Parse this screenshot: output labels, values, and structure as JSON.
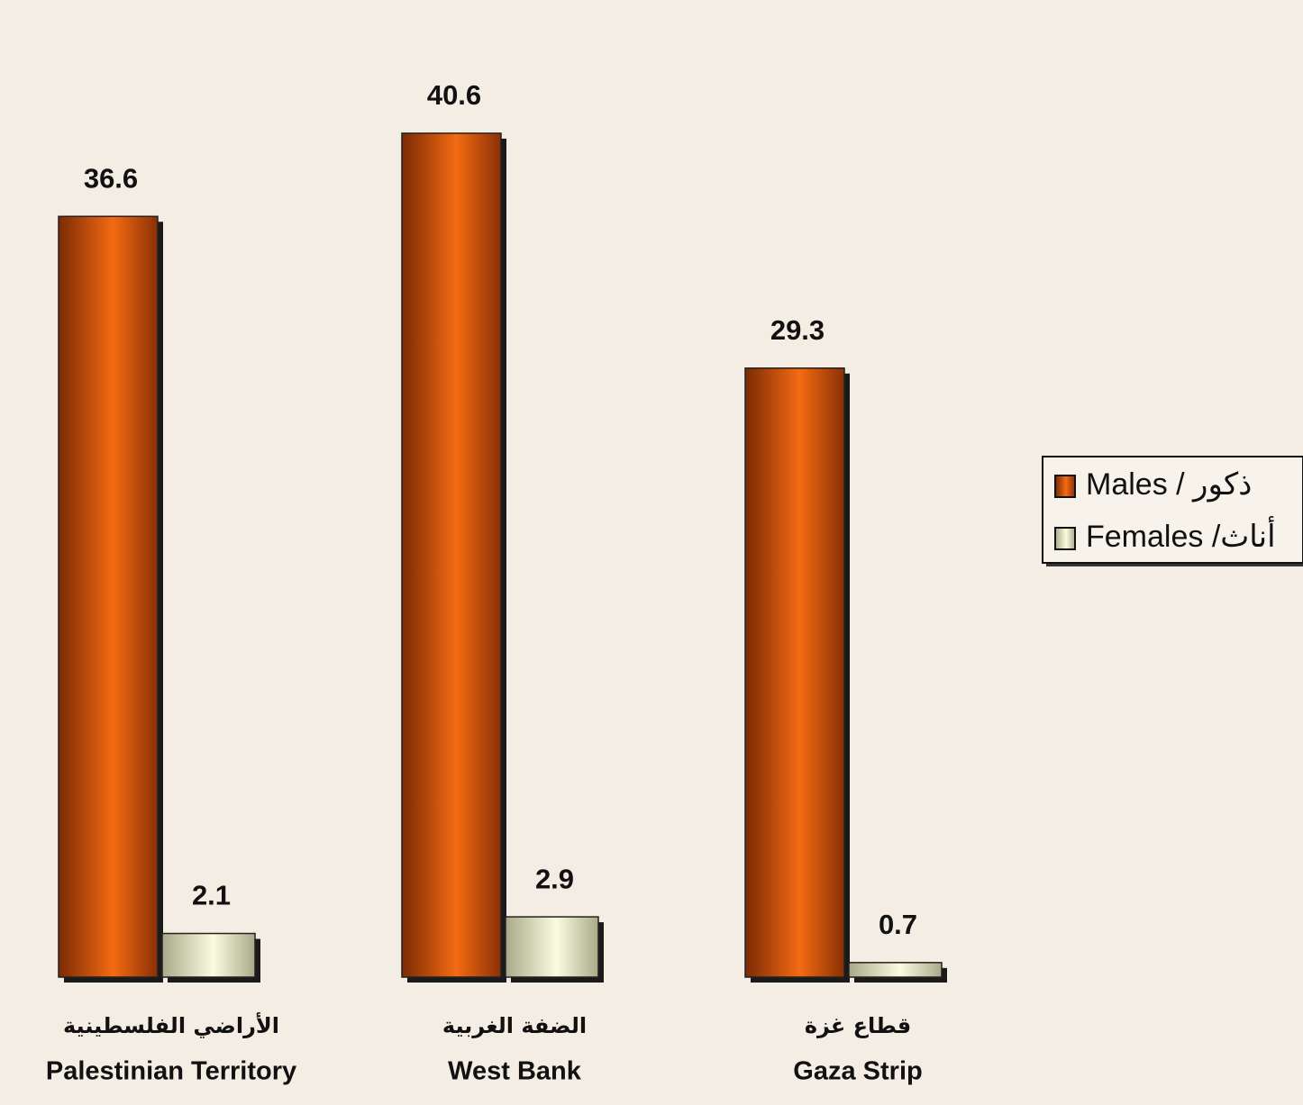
{
  "chart_data": {
    "type": "bar",
    "categories": [
      [
        "الأراضي الفلسطينية",
        "Palestinian Territory"
      ],
      [
        "الضفة الغربية",
        "West Bank"
      ],
      [
        "قطاع غزة",
        "Gaza Strip"
      ]
    ],
    "series": [
      {
        "name": "Males / ذكور",
        "color": "#d9560f",
        "values": [
          36.6,
          40.6,
          29.3
        ]
      },
      {
        "name": "Females /أناث",
        "color": "#ecebc4",
        "values": [
          2.1,
          2.9,
          0.7
        ]
      }
    ],
    "legend": "right"
  }
}
